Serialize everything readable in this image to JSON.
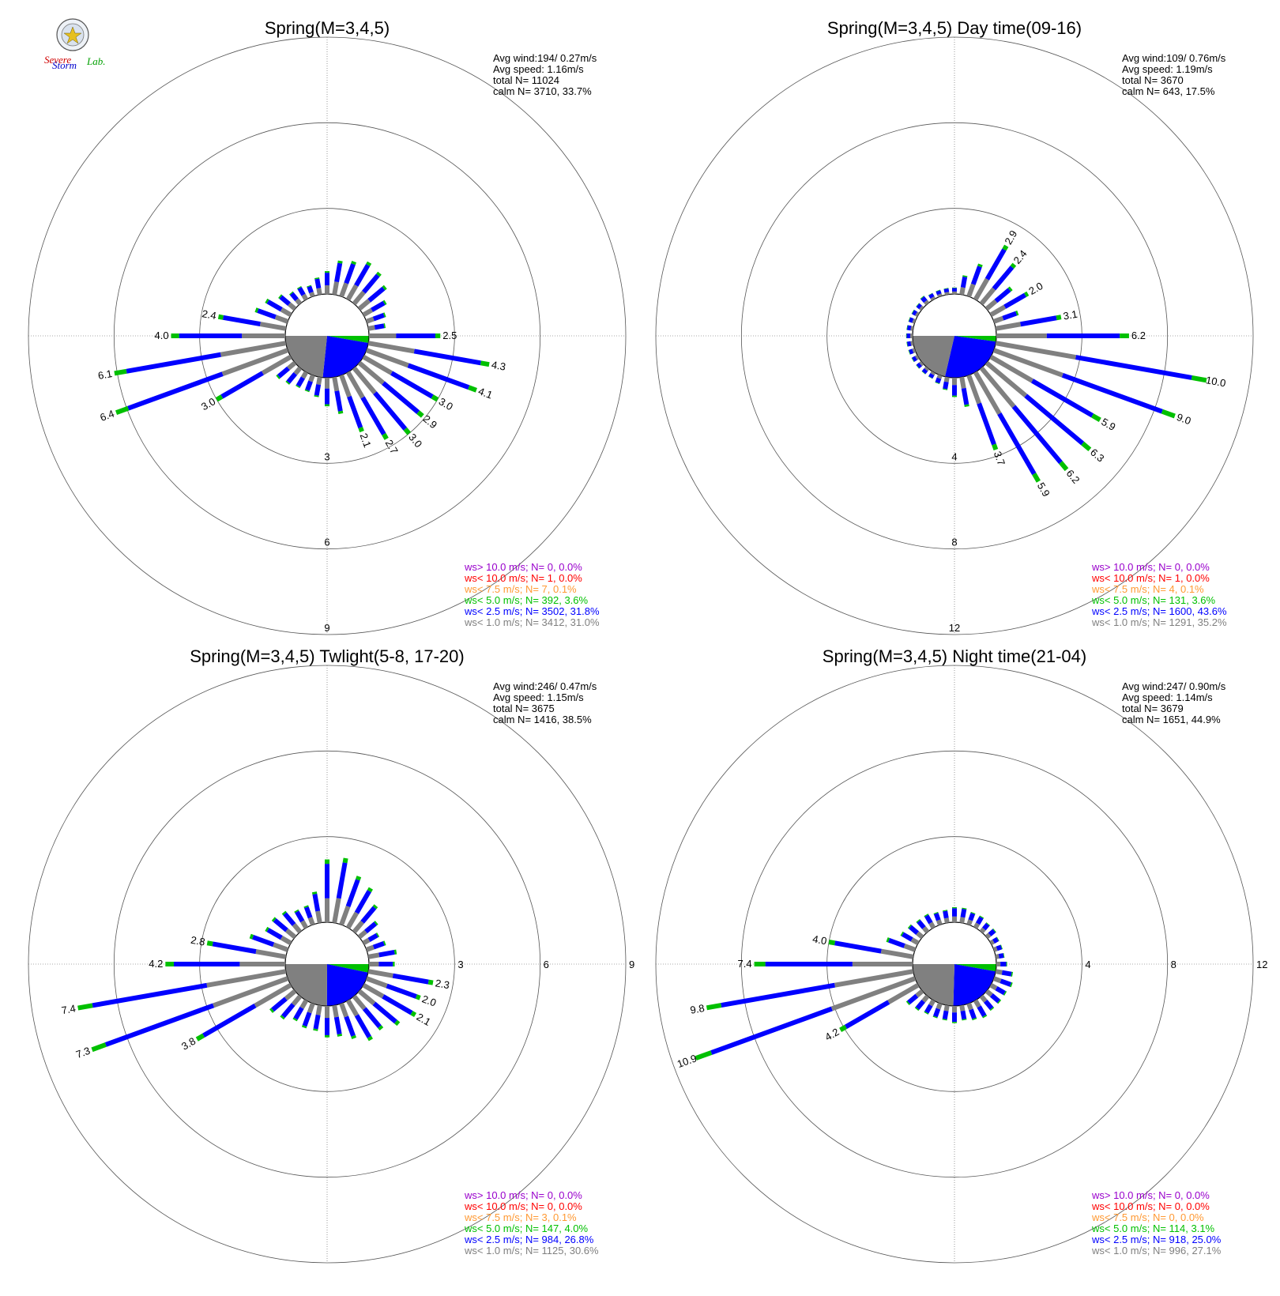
{
  "logo": {
    "line1": "Severe",
    "line2": "Storm",
    "line3": "Lab."
  },
  "colors": {
    "calm": "#808080",
    "lt1": "#808080",
    "lt2_5": "#0000ff",
    "lt5": "#00c000",
    "lt7_5": "#ff9933",
    "lt10": "#ff0000",
    "gt10": "#9900cc",
    "grid": "#555555"
  },
  "chart_data": [
    {
      "type": "polar-bar",
      "title": "Spring(M=3,4,5)",
      "stats": [
        "Avg wind:194/ 0.27m/s",
        "Avg speed: 1.16m/s",
        "total N=      11024",
        "calm N=   3710,  33.7%"
      ],
      "rings": [
        3,
        6,
        9
      ],
      "calm_pct": 33.7,
      "directions_deg": [
        0,
        10,
        20,
        30,
        40,
        50,
        60,
        70,
        80,
        90,
        100,
        110,
        120,
        130,
        140,
        150,
        160,
        170,
        180,
        190,
        200,
        210,
        220,
        230,
        240,
        250,
        260,
        270,
        280,
        290,
        300,
        310,
        320,
        330,
        340,
        350
      ],
      "freq_pct": [
        0.8,
        1.2,
        1.3,
        1.5,
        1.4,
        1.2,
        0.9,
        0.7,
        0.6,
        2.5,
        4.3,
        4.1,
        3.0,
        2.9,
        3.0,
        2.7,
        2.1,
        1.3,
        1.0,
        0.7,
        0.6,
        0.6,
        0.7,
        0.8,
        3.0,
        6.4,
        6.1,
        4.0,
        2.4,
        1.2,
        1.0,
        0.7,
        0.5,
        0.5,
        0.4,
        0.6
      ],
      "bar_labels": {
        "90": "2.5",
        "100": "4.3",
        "110": "4.1",
        "120": "3.0",
        "130": "2.9",
        "140": "3.0",
        "150": "2.7",
        "160": "2.1",
        "240": "3.0",
        "250": "6.4",
        "260": "6.1",
        "270": "4.0",
        "280": "2.4"
      },
      "legend": [
        {
          "key": "gt10",
          "text": "ws> 10.0 m/s; N=    0,  0.0%"
        },
        {
          "key": "lt10",
          "text": "ws< 10.0 m/s; N=    1,  0.0%"
        },
        {
          "key": "lt7_5",
          "text": "ws<  7.5 m/s; N=    7,  0.1%"
        },
        {
          "key": "lt5",
          "text": "ws<  5.0 m/s; N=  392,  3.6%"
        },
        {
          "key": "lt2_5",
          "text": "ws<  2.5 m/s; N= 3502, 31.8%"
        },
        {
          "key": "lt1",
          "text": "ws<  1.0 m/s; N= 3412, 31.0%"
        }
      ]
    },
    {
      "type": "polar-bar",
      "title": "Spring(M=3,4,5) Day time(09-16)",
      "stats": [
        "Avg wind:109/ 0.76m/s",
        "Avg speed: 1.19m/s",
        "total N=       3670",
        "calm N=    643,  17.5%"
      ],
      "rings": [
        4,
        8,
        12
      ],
      "calm_pct": 17.5,
      "directions_deg": [
        0,
        10,
        20,
        30,
        40,
        50,
        60,
        70,
        80,
        90,
        100,
        110,
        120,
        130,
        140,
        150,
        160,
        170,
        180,
        190,
        200,
        210,
        220,
        230,
        240,
        250,
        260,
        270,
        280,
        290,
        300,
        310,
        320,
        330,
        340,
        350
      ],
      "freq_pct": [
        0.3,
        0.9,
        1.6,
        2.9,
        2.4,
        1.5,
        2.0,
        1.2,
        3.1,
        6.2,
        10.0,
        9.0,
        5.9,
        6.3,
        6.2,
        5.9,
        3.7,
        1.4,
        0.9,
        0.6,
        0.4,
        0.3,
        0.3,
        0.3,
        0.3,
        0.3,
        0.3,
        0.3,
        0.3,
        0.3,
        0.3,
        0.3,
        0.4,
        0.3,
        0.3,
        0.3
      ],
      "bar_labels": {
        "30": "2.9",
        "40": "2.4",
        "60": "2.0",
        "80": "3.1",
        "90": "6.2",
        "100": "10.0",
        "110": "9.0",
        "120": "5.9",
        "130": "6.3",
        "140": "6.2",
        "150": "5.9",
        "160": "3.7"
      },
      "legend": [
        {
          "key": "gt10",
          "text": "ws> 10.0 m/s; N=    0,  0.0%"
        },
        {
          "key": "lt10",
          "text": "ws< 10.0 m/s; N=    1,  0.0%"
        },
        {
          "key": "lt7_5",
          "text": "ws<  7.5 m/s; N=    4,  0.1%"
        },
        {
          "key": "lt5",
          "text": "ws<  5.0 m/s; N=  131,  3.6%"
        },
        {
          "key": "lt2_5",
          "text": "ws<  2.5 m/s; N= 1600, 43.6%"
        },
        {
          "key": "lt1",
          "text": "ws<  1.0 m/s; N= 1291, 35.2%"
        }
      ]
    },
    {
      "type": "polar-bar",
      "title": "Spring(M=3,4,5) Twlight(5-8, 17-20)",
      "stats": [
        "Avg wind:246/ 0.47m/s",
        "Avg speed: 1.15m/s",
        "total N=       3675",
        "calm N=   1416,  38.5%"
      ],
      "rings": [
        3,
        6,
        9
      ],
      "calm_pct": 38.5,
      "directions_deg": [
        0,
        10,
        20,
        30,
        40,
        50,
        60,
        70,
        80,
        90,
        100,
        110,
        120,
        130,
        140,
        150,
        160,
        170,
        180,
        190,
        200,
        210,
        220,
        230,
        240,
        250,
        260,
        270,
        280,
        290,
        300,
        310,
        320,
        330,
        340,
        350
      ],
      "freq_pct": [
        2.2,
        2.3,
        1.8,
        1.6,
        1.2,
        0.8,
        0.6,
        0.7,
        1.0,
        0.9,
        2.3,
        2.0,
        2.1,
        1.8,
        1.5,
        1.6,
        1.3,
        1.1,
        1.1,
        0.9,
        0.9,
        0.8,
        1.0,
        1.1,
        3.8,
        7.3,
        7.4,
        4.2,
        2.8,
        1.4,
        1.0,
        1.0,
        0.9,
        0.7,
        0.7,
        1.1
      ],
      "bar_labels": {
        "100": "2.3",
        "110": "2.0",
        "120": "2.1",
        "240": "3.8",
        "250": "7.3",
        "260": "7.4",
        "270": "4.2",
        "280": "2.8"
      },
      "legend": [
        {
          "key": "gt10",
          "text": "ws> 10.0 m/s; N=    0,  0.0%"
        },
        {
          "key": "lt10",
          "text": "ws< 10.0 m/s; N=    0,  0.0%"
        },
        {
          "key": "lt7_5",
          "text": "ws<  7.5 m/s; N=    3,  0.1%"
        },
        {
          "key": "lt5",
          "text": "ws<  5.0 m/s; N=  147,  4.0%"
        },
        {
          "key": "lt2_5",
          "text": "ws<  2.5 m/s; N=  984, 26.8%"
        },
        {
          "key": "lt1",
          "text": "ws<  1.0 m/s; N= 1125, 30.6%"
        }
      ]
    },
    {
      "type": "polar-bar",
      "title": "Spring(M=3,4,5) Night time(21-04)",
      "stats": [
        "Avg wind:247/ 0.90m/s",
        "Avg speed: 1.14m/s",
        "total N=       3679",
        "calm N=   1651,  44.9%"
      ],
      "rings": [
        4,
        8,
        12
      ],
      "calm_pct": 44.9,
      "directions_deg": [
        0,
        10,
        20,
        30,
        40,
        50,
        60,
        70,
        80,
        90,
        100,
        110,
        120,
        130,
        140,
        150,
        160,
        170,
        180,
        190,
        200,
        210,
        220,
        230,
        240,
        250,
        260,
        270,
        280,
        290,
        300,
        310,
        320,
        330,
        340,
        350
      ],
      "freq_pct": [
        0.7,
        0.7,
        0.6,
        0.6,
        0.5,
        0.5,
        0.4,
        0.4,
        0.4,
        0.5,
        0.8,
        0.9,
        0.8,
        0.8,
        0.8,
        0.9,
        0.8,
        0.7,
        0.8,
        0.7,
        0.7,
        0.7,
        0.8,
        0.9,
        4.2,
        10.9,
        9.8,
        7.4,
        4.0,
        1.4,
        0.9,
        0.8,
        0.7,
        0.7,
        0.6,
        0.6
      ],
      "bar_labels": {
        "240": "4.2",
        "250": "10.9",
        "260": "9.8",
        "270": "7.4",
        "280": "4.0"
      },
      "legend": [
        {
          "key": "gt10",
          "text": "ws> 10.0 m/s; N=    0,  0.0%"
        },
        {
          "key": "lt10",
          "text": "ws< 10.0 m/s; N=    0,  0.0%"
        },
        {
          "key": "lt7_5",
          "text": "ws<  7.5 m/s; N=    0,  0.0%"
        },
        {
          "key": "lt5",
          "text": "ws<  5.0 m/s; N=  114,  3.1%"
        },
        {
          "key": "lt2_5",
          "text": "ws<  2.5 m/s; N=  918, 25.0%"
        },
        {
          "key": "lt1",
          "text": "ws<  1.0 m/s; N=  996, 27.1%"
        }
      ]
    }
  ]
}
